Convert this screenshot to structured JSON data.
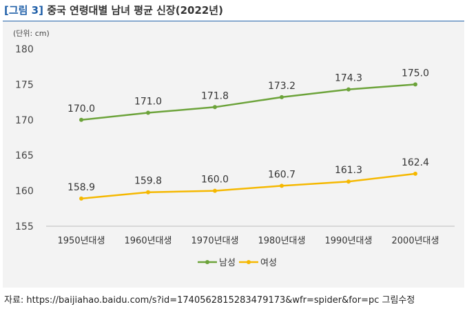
{
  "header": {
    "tag": "[그림 3]",
    "title": "중국 연령대별 남녀 평균 신장(2022년)"
  },
  "chart_data": {
    "type": "line",
    "unit_label": "(단위: cm)",
    "categories": [
      "1950년대생",
      "1960년대생",
      "1970년대생",
      "1980년대생",
      "1990년대생",
      "2000년대생"
    ],
    "series": [
      {
        "name": "남성",
        "color": "#6ca33a",
        "values": [
          170.0,
          171.0,
          171.8,
          173.2,
          174.3,
          175.0
        ]
      },
      {
        "name": "여성",
        "color": "#f5b800",
        "values": [
          158.9,
          159.8,
          160.0,
          160.7,
          161.3,
          162.4
        ]
      }
    ],
    "ylim": [
      155,
      180
    ],
    "yticks": [
      155,
      160,
      165,
      170,
      175,
      180
    ],
    "grid": false,
    "legend_position": "bottom",
    "data_labels": true
  },
  "source": {
    "text": "자료: https://baijiahao.baidu.com/s?id=1740562815283479173&wfr=spider&for=pc 그림수정"
  }
}
